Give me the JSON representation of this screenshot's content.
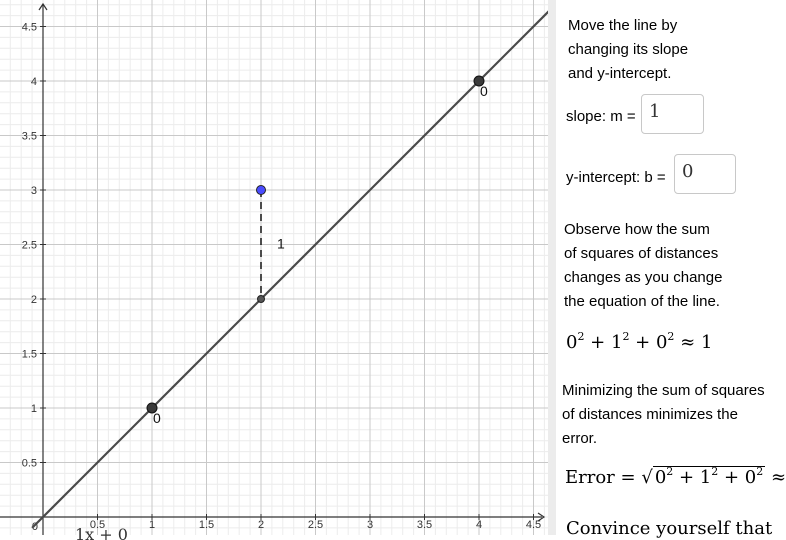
{
  "graph": {
    "x_ticks": [
      "0.5",
      "1",
      "1.5",
      "2",
      "2.5",
      "3",
      "3.5",
      "4",
      "4.5"
    ],
    "y_ticks": [
      "0.5",
      "1",
      "1.5",
      "2",
      "2.5",
      "3",
      "3.5",
      "4",
      "4.5"
    ],
    "origin_label": "0",
    "x_range": [
      0,
      4.7
    ],
    "y_range": [
      0,
      4.7
    ],
    "line": {
      "slope": 1,
      "intercept": 0
    },
    "data_points": [
      {
        "x": 1,
        "y": 1,
        "residual_label": "0"
      },
      {
        "x": 4,
        "y": 4,
        "residual_label": "0"
      }
    ],
    "outlier_point": {
      "x": 2,
      "y": 3,
      "residual_label": "1"
    },
    "bottom_formula_fragment": "1x + 0",
    "colors": {
      "line": "#4a4a4a",
      "point": "#3a3a3a",
      "outlier": "#4a4cff",
      "grid_major": "#c9c9c9",
      "grid_minor": "#ececec"
    }
  },
  "panel": {
    "intro_lines": [
      "Move the line by",
      "changing its slope",
      "and y-intercept."
    ],
    "slope_label": "slope: m =",
    "slope_value": "1",
    "intercept_label": "y-intercept: b =",
    "intercept_value": "0",
    "observe_lines": [
      "Observe how the sum",
      "of squares of distances",
      "changes as you change",
      "the equation of the line."
    ],
    "sum_terms": [
      "0",
      "1",
      "0"
    ],
    "sum_result": "1",
    "minimize_lines": [
      "Minimizing the sum of squares",
      "of distances minimizes the",
      "error."
    ],
    "error_label": "Error",
    "cutoff_text": "Convince yourself that"
  }
}
